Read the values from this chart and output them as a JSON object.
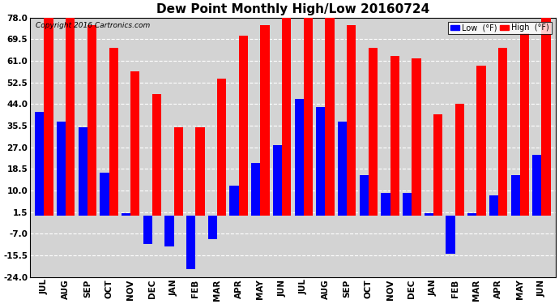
{
  "title": "Dew Point Monthly High/Low 20160724",
  "copyright": "Copyright 2016 Cartronics.com",
  "categories": [
    "JUL",
    "AUG",
    "SEP",
    "OCT",
    "NOV",
    "DEC",
    "JAN",
    "FEB",
    "MAR",
    "APR",
    "MAY",
    "JUN",
    "JUL",
    "AUG",
    "SEP",
    "OCT",
    "NOV",
    "DEC",
    "JAN",
    "FEB",
    "MAR",
    "APR",
    "MAY",
    "JUN"
  ],
  "high_values": [
    78,
    78,
    75,
    66,
    57,
    48,
    35,
    35,
    54,
    71,
    75,
    78,
    80,
    78,
    75,
    66,
    63,
    62,
    40,
    44,
    59,
    66,
    72,
    78
  ],
  "low_values": [
    41,
    37,
    35,
    17,
    1,
    -11,
    -12,
    -21,
    -9,
    12,
    21,
    28,
    46,
    43,
    37,
    16,
    9,
    9,
    1,
    -15,
    1,
    8,
    16,
    24
  ],
  "high_color": "#ff0000",
  "low_color": "#0000ff",
  "bg_color": "#ffffff",
  "plot_bg_color": "#d3d3d3",
  "grid_color": "#ffffff",
  "ylim": [
    -24,
    78
  ],
  "yticks": [
    -24.0,
    -15.5,
    -7.0,
    1.5,
    10.0,
    18.5,
    27.0,
    35.5,
    44.0,
    52.5,
    61.0,
    69.5,
    78.0
  ],
  "bar_width": 0.42,
  "title_fontsize": 11,
  "tick_fontsize": 7.5,
  "legend_low_label": "Low  (°F)",
  "legend_high_label": "High  (°F)"
}
